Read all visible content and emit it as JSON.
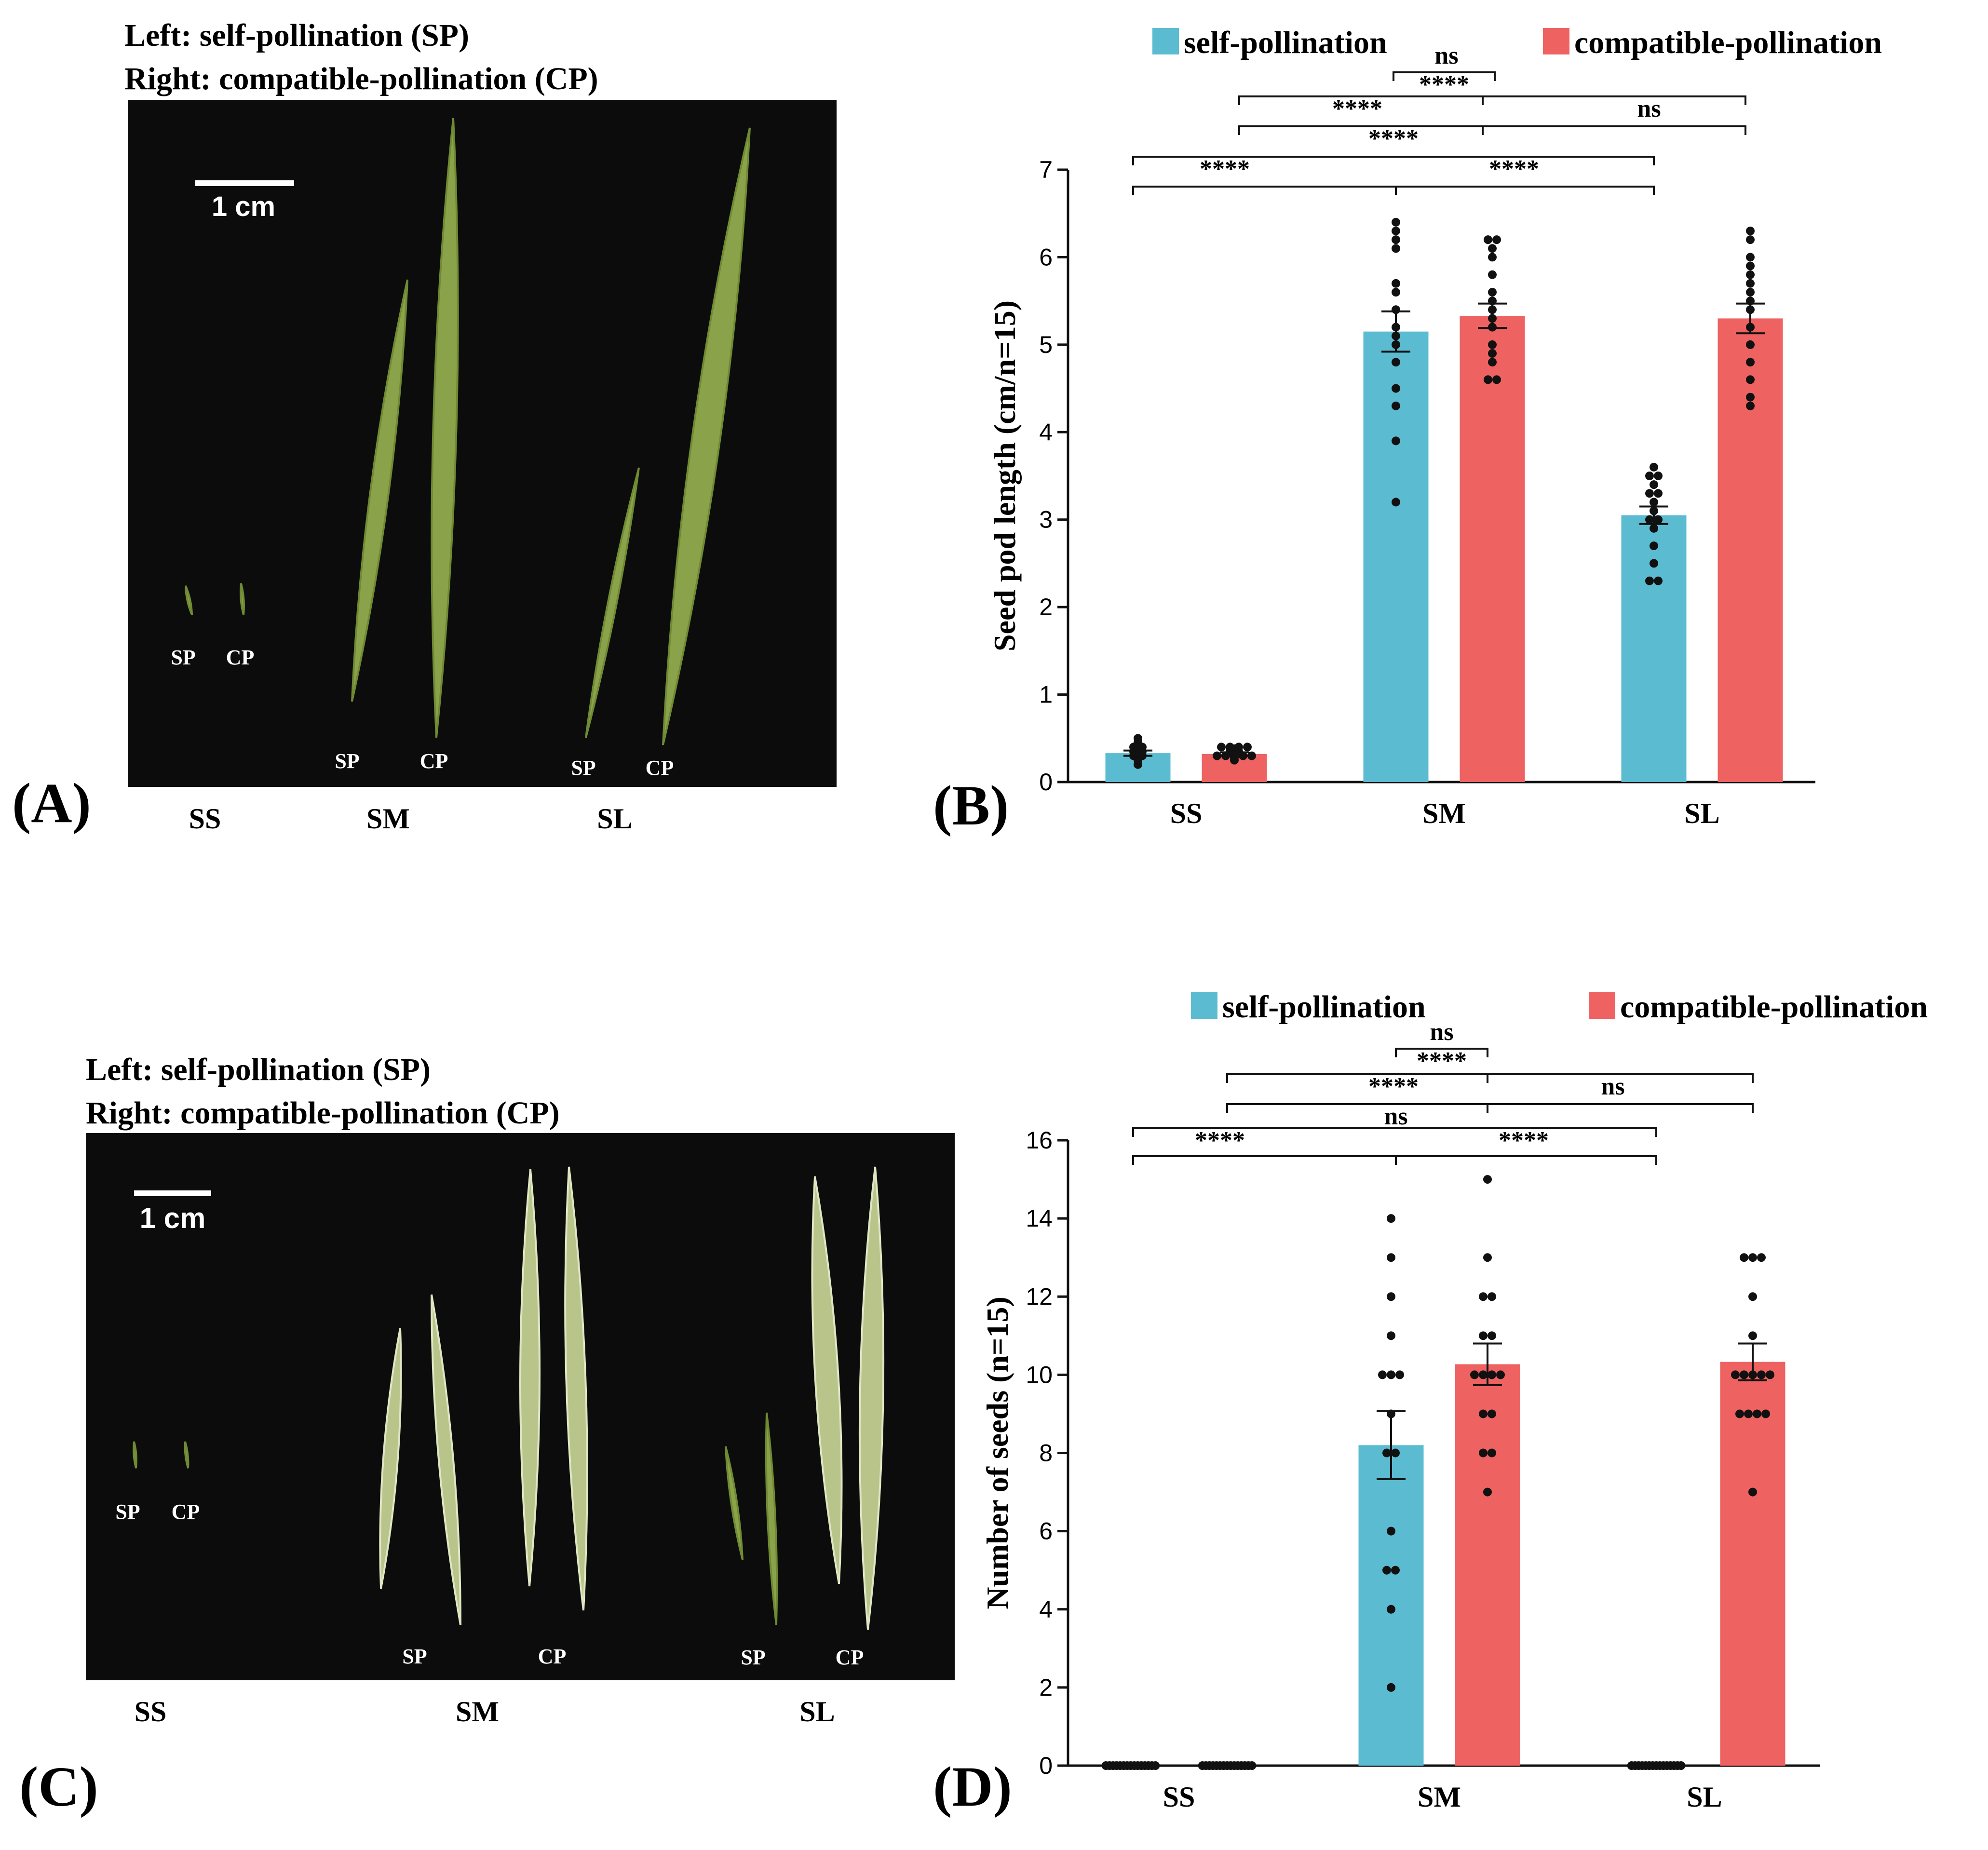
{
  "panels": {
    "A": {
      "letter": "(A)",
      "line1": "Left: self-pollination (SP)",
      "line2": "Right: compatible-pollination (CP)",
      "scale_bar": "1 cm",
      "pod_labels": [
        "SP",
        "CP",
        "SP",
        "CP",
        "SP",
        "CP"
      ],
      "group_labels": [
        "SS",
        "SM",
        "SL"
      ]
    },
    "C": {
      "letter": "(C)",
      "line1": "Left: self-pollination (SP)",
      "line2": "Right: compatible-pollination (CP)",
      "scale_bar": "1 cm",
      "pod_labels": [
        "SP",
        "CP",
        "SP",
        "CP",
        "SP",
        "CP"
      ],
      "group_labels": [
        "SS",
        "SM",
        "SL"
      ]
    },
    "B": {
      "letter": "(B)"
    },
    "D": {
      "letter": "(D)"
    }
  },
  "colors": {
    "self": "#5BBCD1",
    "compatible": "#EF6262",
    "photo_bg": "#0c0c0c",
    "pod_green": "#8aa34a"
  },
  "chart_data": [
    {
      "panel": "B",
      "type": "bar",
      "ylabel": "Seed pod length (cm/n=15)",
      "ylim": [
        0,
        7
      ],
      "yticks": [
        "0",
        "1",
        "2",
        "3",
        "4",
        "5",
        "6",
        "7"
      ],
      "categories": [
        "SS",
        "SM",
        "SL"
      ],
      "series": [
        {
          "name": "self-pollination",
          "values": [
            0.33,
            5.15,
            3.05
          ],
          "sem": [
            0.03,
            0.23,
            0.1
          ],
          "points": [
            [
              0.2,
              0.25,
              0.28,
              0.3,
              0.3,
              0.32,
              0.33,
              0.35,
              0.35,
              0.38,
              0.4,
              0.4,
              0.42,
              0.45,
              0.5
            ],
            [
              3.2,
              3.9,
              4.3,
              4.5,
              4.8,
              5.0,
              5.1,
              5.2,
              5.4,
              5.6,
              5.7,
              6.1,
              6.2,
              6.3,
              6.4
            ],
            [
              2.3,
              2.3,
              2.5,
              2.7,
              2.9,
              3.0,
              3.0,
              3.1,
              3.2,
              3.3,
              3.3,
              3.4,
              3.5,
              3.5,
              3.6
            ]
          ]
        },
        {
          "name": "compatible-pollination",
          "values": [
            0.32,
            5.33,
            5.3
          ],
          "sem": [
            0.02,
            0.14,
            0.17
          ],
          "points": [
            [
              0.25,
              0.28,
              0.3,
              0.3,
              0.3,
              0.3,
              0.3,
              0.33,
              0.35,
              0.35,
              0.38,
              0.4,
              0.4,
              0.4,
              0.4
            ],
            [
              4.6,
              4.6,
              4.8,
              4.9,
              5.0,
              5.2,
              5.3,
              5.4,
              5.5,
              5.6,
              5.8,
              6.0,
              6.1,
              6.2,
              6.2
            ],
            [
              4.3,
              4.4,
              4.6,
              4.8,
              5.0,
              5.2,
              5.4,
              5.5,
              5.6,
              5.7,
              5.8,
              5.9,
              6.0,
              6.2,
              6.3
            ]
          ]
        }
      ],
      "comparisons": [
        {
          "from": [
            0,
            0
          ],
          "to": [
            2,
            0
          ],
          "label": "****",
          "label2": "****",
          "split": [
            1,
            0
          ],
          "level": 0
        },
        {
          "from": [
            1,
            0
          ],
          "to": [
            2,
            1
          ],
          "label": "****",
          "label2": "ns",
          "split": [
            1,
            1
          ],
          "level": 2
        },
        {
          "from": [
            0,
            0
          ],
          "to": [
            2,
            0
          ],
          "label": "****",
          "level": 0,
          "outer": true
        },
        {
          "from": [
            1,
            0
          ],
          "to": [
            2,
            1
          ],
          "label": "****",
          "level": 1
        },
        {
          "from": [
            1,
            0
          ],
          "to": [
            1,
            1
          ],
          "label": "****",
          "level": 3
        },
        {
          "from": [
            1,
            0
          ],
          "to": [
            1,
            1
          ],
          "label": "ns",
          "level": 4
        }
      ],
      "annotations": [
        "ns",
        "****",
        "****",
        "ns",
        "****",
        "****",
        "****"
      ]
    },
    {
      "panel": "D",
      "type": "bar",
      "ylabel": "Number of seeds (n=15)",
      "ylim": [
        0,
        16
      ],
      "yticks": [
        "0",
        "2",
        "4",
        "6",
        "8",
        "10",
        "12",
        "14",
        "16"
      ],
      "categories": [
        "SS",
        "SM",
        "SL"
      ],
      "series": [
        {
          "name": "self-pollination",
          "values": [
            0,
            8.2,
            0
          ],
          "sem": [
            0,
            0.87,
            0
          ],
          "points": [
            [
              0,
              0,
              0,
              0,
              0,
              0,
              0,
              0,
              0,
              0,
              0,
              0,
              0,
              0,
              0
            ],
            [
              2,
              4,
              5,
              5,
              6,
              8,
              8,
              10,
              10,
              10,
              12,
              13,
              14,
              11,
              9
            ],
            [
              0,
              0,
              0,
              0,
              0,
              0,
              0,
              0,
              0,
              0,
              0,
              0,
              0,
              0,
              0
            ]
          ]
        },
        {
          "name": "compatible-pollination",
          "values": [
            0,
            10.27,
            10.33
          ],
          "sem": [
            0,
            0.53,
            0.47
          ],
          "points": [
            [
              0,
              0,
              0,
              0,
              0,
              0,
              0,
              0,
              0,
              0,
              0,
              0,
              0,
              0,
              0
            ],
            [
              7,
              8,
              9,
              9,
              10,
              10,
              10,
              11,
              12,
              12,
              13,
              15,
              8,
              10,
              11
            ],
            [
              7,
              9,
              9,
              9,
              10,
              10,
              10,
              11,
              12,
              13,
              13,
              13,
              9,
              10,
              10
            ]
          ]
        }
      ],
      "annotations": [
        "ns",
        "****",
        "****",
        "ns",
        "ns",
        "****",
        "****"
      ]
    }
  ]
}
